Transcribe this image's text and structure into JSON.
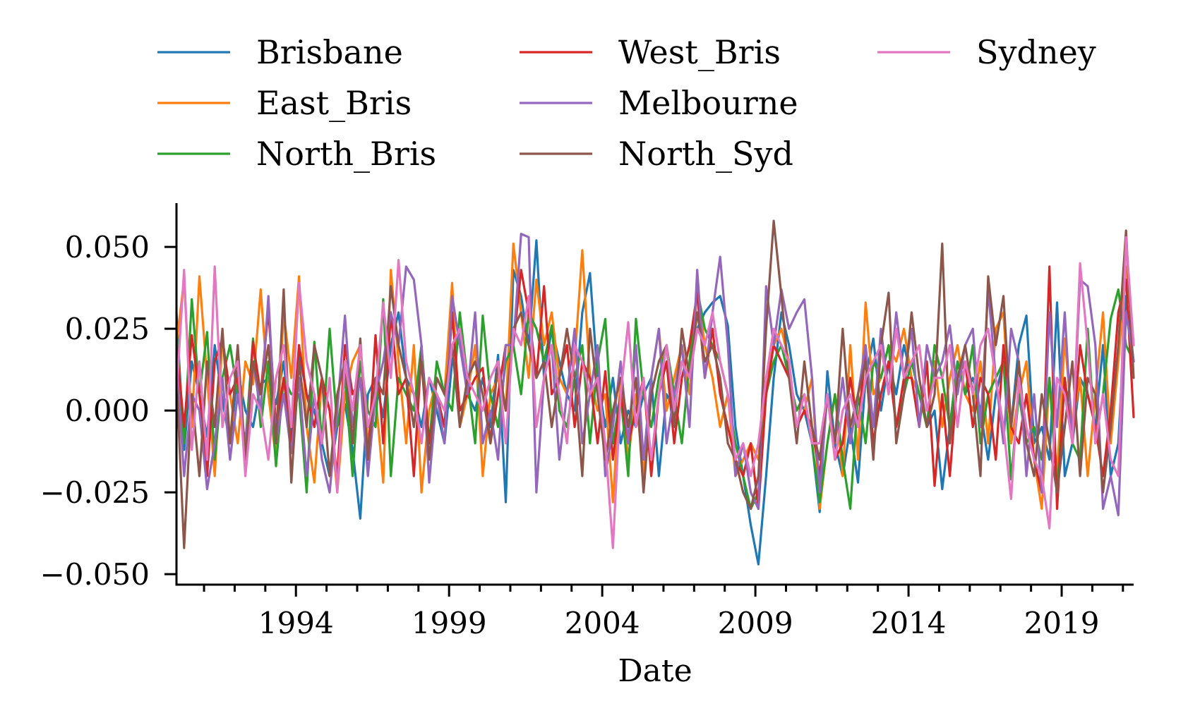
{
  "chart_data": {
    "type": "line",
    "title": "",
    "xlabel": "Date",
    "ylabel": "",
    "xlim": [
      1990.1,
      2021.35
    ],
    "ylim": [
      -0.0532,
      0.0634
    ],
    "x_start": 1990.1,
    "x_step": 0.25,
    "xticks": [
      1994,
      1999,
      2004,
      2009,
      2014,
      2019
    ],
    "xtick_labels": [
      "1994",
      "1999",
      "2004",
      "2009",
      "2014",
      "2019"
    ],
    "yticks": [
      0.05,
      0.025,
      0,
      -0.025,
      -0.05
    ],
    "ytick_labels": [
      "0.050",
      "0.025",
      "0.000",
      "−0.025",
      "−0.050"
    ],
    "grid": false,
    "legend_placement": "top, above plot, 3 columns",
    "series": [
      {
        "name": "Brisbane",
        "color": "#1f77b4",
        "values": [
          0.03,
          -0.012,
          0.015,
          0.005,
          -0.008,
          0.02,
          0.003,
          -0.01,
          0.012,
          0.0,
          -0.005,
          0.008,
          0.01,
          0.002,
          0.015,
          -0.008,
          0.018,
          0.005,
          0.0,
          -0.01,
          -0.02,
          -0.005,
          0.002,
          -0.012,
          -0.033,
          0.005,
          0.01,
          -0.002,
          0.02,
          0.03,
          0.01,
          0.005,
          -0.005,
          0.01,
          0.0,
          -0.01,
          0.015,
          0.025,
          0.005,
          0.0,
          0.01,
          -0.005,
          0.017,
          -0.028,
          0.043,
          0.035,
          0.02,
          0.052,
          0.01,
          0.025,
          0.015,
          0.005,
          0.0,
          0.03,
          0.042,
          0.01,
          -0.005,
          0.01,
          -0.01,
          0.0,
          -0.005,
          0.005,
          0.01,
          -0.02,
          0.005,
          0.0,
          0.015,
          0.01,
          0.025,
          0.03,
          0.033,
          0.035,
          0.026,
          -0.005,
          -0.02,
          -0.035,
          -0.047,
          -0.02,
          0.01,
          0.03,
          0.02,
          0.005,
          0.0,
          -0.01,
          -0.031,
          0.012,
          -0.01,
          -0.02,
          -0.005,
          -0.022,
          0.01,
          0.022,
          0.0,
          0.015,
          0.005,
          0.02,
          0.01,
          0.005,
          -0.005,
          0.0,
          -0.024,
          -0.005,
          0.015,
          0.005,
          0.01,
          0.0,
          -0.015,
          0.005,
          0.015,
          -0.005,
          0.02,
          0.029,
          -0.01,
          -0.005,
          -0.015,
          0.033,
          -0.02,
          -0.01,
          0.01,
          0.005,
          -0.005,
          0.02,
          -0.02,
          -0.01,
          0.035,
          0.015
        ]
      },
      {
        "name": "East_Bris",
        "color": "#ff7f0e",
        "values": [
          0.02,
          0.04,
          -0.005,
          0.041,
          0.01,
          -0.02,
          0.022,
          0.005,
          -0.01,
          0.015,
          0.008,
          0.037,
          0.005,
          -0.015,
          0.03,
          0.01,
          0.041,
          -0.005,
          -0.022,
          0.01,
          0.0,
          -0.025,
          0.005,
          0.015,
          0.02,
          -0.01,
          0.005,
          -0.022,
          0.043,
          0.015,
          -0.01,
          0.02,
          -0.025,
          0.0,
          0.01,
          0.005,
          0.039,
          -0.005,
          0.005,
          0.02,
          -0.02,
          0.005,
          0.01,
          0.0,
          0.051,
          0.03,
          0.01,
          0.04,
          0.02,
          0.03,
          0.01,
          0.005,
          0.015,
          0.049,
          0.01,
          0.0,
          0.005,
          -0.028,
          0.01,
          -0.015,
          0.005,
          -0.02,
          0.01,
          0.025,
          0.0,
          0.01,
          0.02,
          0.005,
          0.037,
          0.02,
          0.01,
          -0.005,
          0.005,
          -0.02,
          -0.015,
          -0.01,
          -0.015,
          0.01,
          0.02,
          0.025,
          0.015,
          -0.005,
          0.0,
          0.01,
          -0.03,
          -0.01,
          0.005,
          -0.02,
          0.02,
          -0.015,
          0.033,
          0.005,
          0.01,
          0.02,
          0.015,
          0.025,
          0.01,
          0.005,
          -0.005,
          0.015,
          -0.005,
          0.01,
          0.02,
          0.005,
          0.0,
          0.015,
          -0.01,
          0.025,
          0.03,
          -0.01,
          0.005,
          0.015,
          -0.015,
          -0.03,
          0.01,
          -0.02,
          0.022,
          -0.005,
          0.01,
          -0.02,
          0.005,
          0.03,
          -0.01,
          0.015,
          0.044,
          0.02
        ]
      },
      {
        "name": "North_Bris",
        "color": "#2ca02c",
        "values": [
          0.025,
          -0.01,
          0.034,
          0.005,
          0.024,
          -0.015,
          0.01,
          0.02,
          0.005,
          -0.01,
          0.022,
          -0.005,
          0.015,
          -0.017,
          0.01,
          0.005,
          0.005,
          -0.025,
          0.021,
          -0.01,
          0.025,
          -0.005,
          0.01,
          -0.02,
          0.015,
          0.0,
          -0.005,
          0.034,
          -0.02,
          0.01,
          0.005,
          0.0,
          0.02,
          -0.01,
          0.015,
          0.005,
          0.0,
          0.03,
          0.01,
          -0.01,
          0.029,
          0.005,
          -0.005,
          0.015,
          0.02,
          0.005,
          0.03,
          0.025,
          0.015,
          0.026,
          0.0,
          -0.005,
          0.01,
          0.02,
          -0.01,
          0.015,
          0.028,
          -0.01,
          0.005,
          -0.02,
          0.028,
          0.005,
          -0.005,
          0.01,
          0.02,
          0.005,
          -0.01,
          0.015,
          0.037,
          0.025,
          0.02,
          0.015,
          0.005,
          -0.01,
          -0.02,
          -0.03,
          -0.025,
          0.005,
          0.015,
          0.02,
          0.01,
          0.0,
          0.005,
          -0.01,
          -0.028,
          -0.01,
          0.005,
          -0.015,
          -0.03,
          0.005,
          -0.01,
          0.015,
          0.01,
          0.02,
          -0.005,
          0.005,
          0.015,
          0.005,
          -0.005,
          0.02,
          0.01,
          -0.005,
          0.015,
          0.005,
          0.02,
          -0.01,
          0.005,
          0.01,
          0.015,
          -0.021,
          0.005,
          -0.01,
          -0.005,
          -0.015,
          0.01,
          -0.025,
          0.01,
          -0.01,
          -0.015,
          0.025,
          -0.01,
          0.005,
          0.028,
          0.037,
          0.02,
          0.015
        ]
      },
      {
        "name": "West_Bris",
        "color": "#d62728",
        "values": [
          0.02,
          -0.005,
          0.023,
          0.005,
          -0.02,
          0.015,
          0.022,
          0.005,
          0.01,
          -0.015,
          0.021,
          0.005,
          0.031,
          -0.005,
          0.01,
          -0.01,
          0.02,
          0.005,
          -0.005,
          0.01,
          0.0,
          -0.02,
          0.02,
          0.005,
          0.01,
          -0.015,
          0.023,
          -0.01,
          0.03,
          0.005,
          0.01,
          -0.02,
          0.018,
          -0.01,
          0.005,
          -0.005,
          0.03,
          0.0,
          0.005,
          0.01,
          0.013,
          -0.01,
          0.005,
          0.02,
          0.02,
          0.043,
          0.03,
          0.01,
          0.038,
          0.005,
          0.01,
          0.02,
          -0.005,
          0.015,
          0.01,
          -0.01,
          0.012,
          -0.015,
          0.005,
          -0.01,
          0.0,
          0.01,
          -0.02,
          0.005,
          0.015,
          -0.01,
          0.01,
          0.02,
          0.036,
          0.01,
          0.025,
          0.005,
          -0.005,
          -0.015,
          -0.02,
          -0.01,
          -0.03,
          0.005,
          0.02,
          0.015,
          0.01,
          -0.005,
          0.0,
          -0.005,
          -0.02,
          0.005,
          -0.015,
          -0.01,
          0.01,
          -0.005,
          0.018,
          -0.01,
          0.005,
          0.015,
          -0.005,
          0.01,
          0.01,
          -0.005,
          0.015,
          -0.023,
          0.005,
          -0.02,
          0.01,
          0.015,
          -0.005,
          0.01,
          0.005,
          -0.015,
          0.02,
          -0.005,
          -0.01,
          0.005,
          -0.015,
          -0.025,
          0.044,
          -0.03,
          0.01,
          -0.01,
          0.02,
          0.005,
          -0.005,
          -0.02,
          0.0,
          0.03,
          0.04,
          -0.002
        ]
      },
      {
        "name": "Melbourne",
        "color": "#9467bd",
        "values": [
          0.015,
          -0.02,
          0.005,
          0.0,
          -0.024,
          -0.01,
          0.01,
          -0.015,
          0.005,
          -0.01,
          0.015,
          0.0,
          0.035,
          -0.01,
          0.005,
          -0.013,
          0.01,
          -0.02,
          0.005,
          -0.015,
          -0.025,
          0.0,
          0.029,
          -0.005,
          0.01,
          -0.02,
          0.005,
          0.015,
          0.03,
          0.02,
          0.044,
          0.04,
          0.02,
          -0.022,
          0.005,
          -0.01,
          0.035,
          0.02,
          0.005,
          0.03,
          -0.01,
          0.0,
          -0.015,
          0.02,
          0.02,
          0.054,
          0.053,
          -0.025,
          0.01,
          0.02,
          -0.015,
          0.005,
          0.025,
          -0.01,
          0.005,
          0.02,
          -0.02,
          -0.005,
          0.015,
          -0.01,
          0.02,
          -0.015,
          0.01,
          0.025,
          -0.01,
          0.005,
          0.02,
          -0.005,
          0.043,
          0.01,
          0.03,
          0.047,
          0.02,
          -0.02,
          -0.01,
          -0.025,
          -0.03,
          0.038,
          0.02,
          0.037,
          0.025,
          0.03,
          0.034,
          0.01,
          -0.025,
          0.005,
          -0.01,
          0.01,
          -0.01,
          0.005,
          0.02,
          -0.005,
          0.025,
          0.005,
          0.03,
          0.01,
          0.025,
          -0.005,
          0.02,
          0.01,
          0.015,
          0.026,
          0.005,
          0.02,
          0.025,
          -0.005,
          0.037,
          0.01,
          -0.01,
          0.025,
          0.015,
          -0.02,
          0.005,
          -0.025,
          0.03,
          -0.005,
          0.03,
          -0.01,
          0.04,
          0.038,
          0.02,
          -0.03,
          -0.02,
          -0.032,
          0.03,
          0.015
        ]
      },
      {
        "name": "North_Syd",
        "color": "#8c564b",
        "values": [
          0.01,
          -0.042,
          0.005,
          -0.02,
          0.015,
          -0.005,
          0.025,
          -0.01,
          0.02,
          -0.015,
          0.015,
          0.005,
          0.02,
          -0.01,
          0.037,
          -0.022,
          0.015,
          -0.005,
          0.02,
          0.01,
          -0.02,
          0.005,
          0.015,
          -0.01,
          0.022,
          -0.015,
          0.01,
          0.005,
          0.038,
          0.02,
          0.01,
          -0.005,
          0.015,
          -0.015,
          0.01,
          0.005,
          0.02,
          -0.005,
          0.01,
          0.015,
          0.005,
          -0.01,
          0.015,
          0.0,
          0.025,
          0.03,
          0.02,
          0.01,
          0.015,
          -0.005,
          0.01,
          0.025,
          0.01,
          -0.02,
          0.025,
          0.005,
          -0.015,
          0.0,
          0.01,
          -0.005,
          0.01,
          -0.025,
          0.005,
          0.015,
          0.02,
          -0.005,
          0.025,
          0.01,
          0.03,
          0.015,
          0.02,
          0.01,
          -0.01,
          -0.015,
          -0.025,
          -0.03,
          -0.02,
          0.025,
          0.058,
          0.035,
          0.01,
          -0.01,
          0.015,
          -0.005,
          -0.015,
          0.005,
          -0.01,
          0.025,
          -0.005,
          0.005,
          0.015,
          -0.015,
          0.02,
          0.036,
          -0.01,
          0.005,
          0.03,
          0.01,
          -0.005,
          0.005,
          0.051,
          -0.01,
          0.01,
          0.02,
          0.005,
          -0.02,
          0.041,
          0.02,
          0.035,
          -0.005,
          0.015,
          -0.01,
          -0.02,
          0.005,
          -0.01,
          -0.025,
          -0.005,
          0.015,
          -0.02,
          0.01,
          0.005,
          -0.025,
          -0.005,
          0.02,
          0.055,
          0.01
        ]
      },
      {
        "name": "Sydney",
        "color": "#e377c2",
        "values": [
          0.005,
          0.043,
          -0.012,
          0.015,
          -0.015,
          0.044,
          -0.005,
          0.01,
          0.015,
          -0.02,
          0.005,
          0.0,
          -0.015,
          0.01,
          0.02,
          -0.005,
          0.039,
          0.015,
          0.005,
          -0.01,
          0.01,
          -0.025,
          0.015,
          0.0,
          0.02,
          -0.005,
          0.005,
          0.033,
          0.01,
          0.046,
          0.015,
          0.005,
          -0.01,
          0.01,
          0.005,
          0.0,
          0.02,
          0.025,
          0.01,
          0.005,
          0.0,
          0.01,
          0.015,
          -0.01,
          0.025,
          0.02,
          0.035,
          -0.005,
          0.01,
          0.02,
          0.005,
          -0.01,
          0.02,
          0.015,
          0.005,
          0.01,
          -0.01,
          -0.042,
          0.005,
          0.027,
          -0.005,
          0.01,
          -0.015,
          0.005,
          0.02,
          0.0,
          0.015,
          0.01,
          0.025,
          0.02,
          0.03,
          0.015,
          0.005,
          -0.015,
          -0.01,
          -0.02,
          -0.01,
          0.01,
          0.025,
          0.02,
          0.015,
          -0.005,
          0.005,
          -0.01,
          -0.01,
          0.005,
          -0.015,
          0.0,
          0.005,
          -0.005,
          0.01,
          0.015,
          0.02,
          0.005,
          0.025,
          0.01,
          0.015,
          0.02,
          0.0,
          0.01,
          0.01,
          0.02,
          -0.005,
          0.015,
          0.005,
          0.02,
          0.025,
          0.01,
          -0.005,
          -0.027,
          0.01,
          -0.005,
          -0.015,
          -0.02,
          -0.036,
          0.01,
          0.005,
          -0.01,
          0.045,
          0.02,
          -0.01,
          0.005,
          -0.015,
          -0.02,
          0.053,
          0.02
        ]
      }
    ]
  }
}
